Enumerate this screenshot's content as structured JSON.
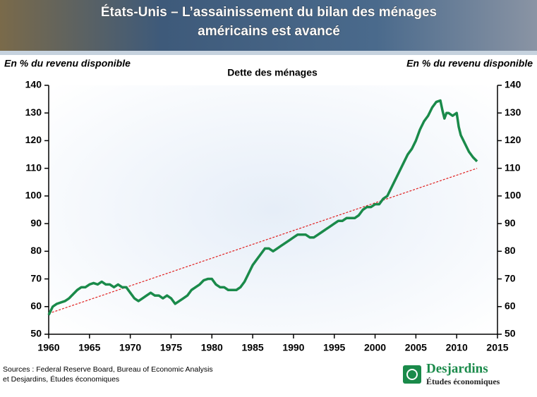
{
  "chart_data": {
    "type": "line",
    "title": [
      "États-Unis – L’assainissement du bilan des ménages",
      "américains est avancé"
    ],
    "subtitle": "Dette des ménages",
    "y_label": "En % du revenu disponible",
    "y2_label": "En % du revenu disponible",
    "x": [
      1960,
      1960.5,
      1961,
      1961.5,
      1962,
      1962.5,
      1963,
      1963.5,
      1964,
      1964.5,
      1965,
      1965.5,
      1966,
      1966.5,
      1967,
      1967.5,
      1968,
      1968.5,
      1969,
      1969.5,
      1970,
      1970.5,
      1971,
      1971.5,
      1972,
      1972.5,
      1973,
      1973.5,
      1974,
      1974.5,
      1975,
      1975.5,
      1976,
      1976.5,
      1977,
      1977.5,
      1978,
      1978.5,
      1979,
      1979.5,
      1980,
      1980.5,
      1981,
      1981.5,
      1982,
      1982.5,
      1983,
      1983.5,
      1984,
      1984.5,
      1985,
      1985.5,
      1986,
      1986.5,
      1987,
      1987.5,
      1988,
      1988.5,
      1989,
      1989.5,
      1990,
      1990.5,
      1991,
      1991.5,
      1992,
      1992.5,
      1993,
      1993.5,
      1994,
      1994.5,
      1995,
      1995.5,
      1996,
      1996.5,
      1997,
      1997.5,
      1998,
      1998.5,
      1999,
      1999.5,
      2000,
      2000.5,
      2001,
      2001.5,
      2002,
      2002.5,
      2003,
      2003.5,
      2004,
      2004.5,
      2005,
      2005.5,
      2006,
      2006.5,
      2007,
      2007.5,
      2008,
      2008.25,
      2008.5,
      2008.75,
      2009,
      2009.5,
      2010,
      2010.25,
      2010.5,
      2011,
      2011.5,
      2012,
      2012.5
    ],
    "series": [
      {
        "color": "#1a8a4a",
        "values": [
          57,
          60,
          61,
          61.5,
          62,
          63,
          64.5,
          66,
          67,
          67,
          68,
          68.5,
          68,
          69,
          68,
          68,
          67,
          68,
          67,
          67,
          65,
          63,
          62,
          63,
          64,
          65,
          64,
          64,
          63,
          64,
          63,
          61,
          62,
          63,
          64,
          66,
          67,
          68,
          69.5,
          70,
          70,
          68,
          67,
          67,
          66,
          66,
          66,
          67,
          69,
          72,
          75,
          77,
          79,
          81,
          81,
          80,
          81,
          82,
          83,
          84,
          85,
          86,
          86,
          86,
          85,
          85,
          86,
          87,
          88,
          89,
          90,
          91,
          91,
          92,
          92,
          92,
          93,
          95,
          96,
          96,
          97,
          97,
          99,
          100,
          103,
          106,
          109,
          112,
          115,
          117,
          120,
          124,
          127,
          129,
          132,
          134,
          134.5,
          131,
          128,
          130,
          130,
          129,
          130,
          125,
          122,
          119,
          116,
          114,
          112.5
        ]
      }
    ],
    "trend": {
      "x": [
        1960,
        2012.5
      ],
      "values": [
        57.5,
        110
      ],
      "color": "#e02020"
    },
    "xlim": [
      1960,
      2015
    ],
    "xticks": [
      1960,
      1965,
      1970,
      1975,
      1980,
      1985,
      1990,
      1995,
      2000,
      2005,
      2010,
      2015
    ],
    "ylim": [
      50,
      140
    ],
    "yticks": [
      50,
      60,
      70,
      80,
      90,
      100,
      110,
      120,
      130,
      140
    ],
    "y2lim": [
      50,
      140
    ],
    "y2ticks": [
      50,
      60,
      70,
      80,
      90,
      100,
      110,
      120,
      130,
      140
    ],
    "source": [
      "Sources : Federal Reserve Board, Bureau of Economic Analysis",
      "et Desjardins, Études économiques"
    ],
    "brand": {
      "name": "Desjardins",
      "unit": "Études économiques"
    }
  }
}
